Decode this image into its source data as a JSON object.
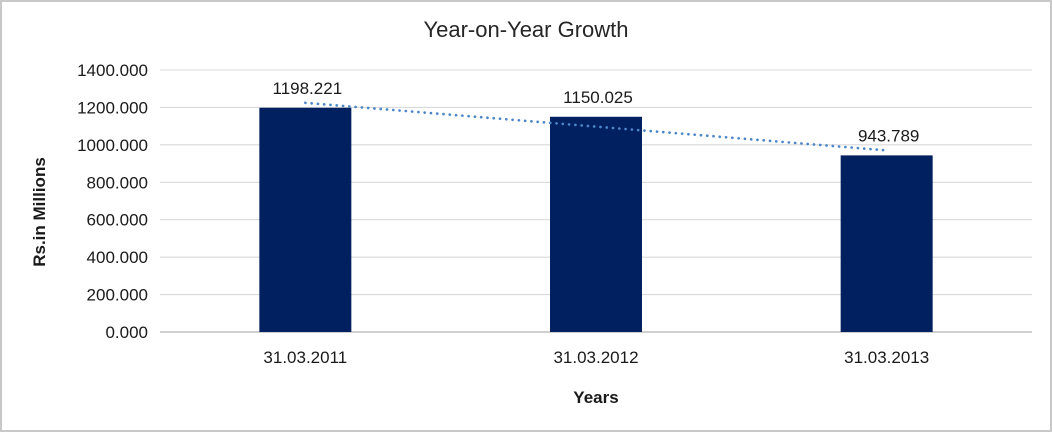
{
  "chart_data": {
    "type": "bar",
    "title": "Year-on-Year Growth",
    "xlabel": "Years",
    "ylabel": "Rs.in Millions",
    "categories": [
      "31.03.2011",
      "31.03.2012",
      "31.03.2013"
    ],
    "values": [
      1198.221,
      1150.025,
      943.789
    ],
    "data_labels": [
      "1198.221",
      "1150.025",
      "943.789"
    ],
    "y_ticks": [
      "1400.000",
      "1200.000",
      "1000.000",
      "800.000",
      "600.000",
      "400.000",
      "200.000",
      "0.000"
    ],
    "ylim": [
      0,
      1400
    ],
    "y_step": 200,
    "grid": true,
    "legend": "none",
    "trendline": {
      "type": "linear",
      "style": "dotted"
    },
    "colors": {
      "bar": "#002060",
      "trendline": "#4C86C8",
      "gridline": "#D9D9D9",
      "axis_line": "#BFBFBF",
      "text": "#1A1A1A",
      "frame_border": "#C8C8C8"
    }
  }
}
